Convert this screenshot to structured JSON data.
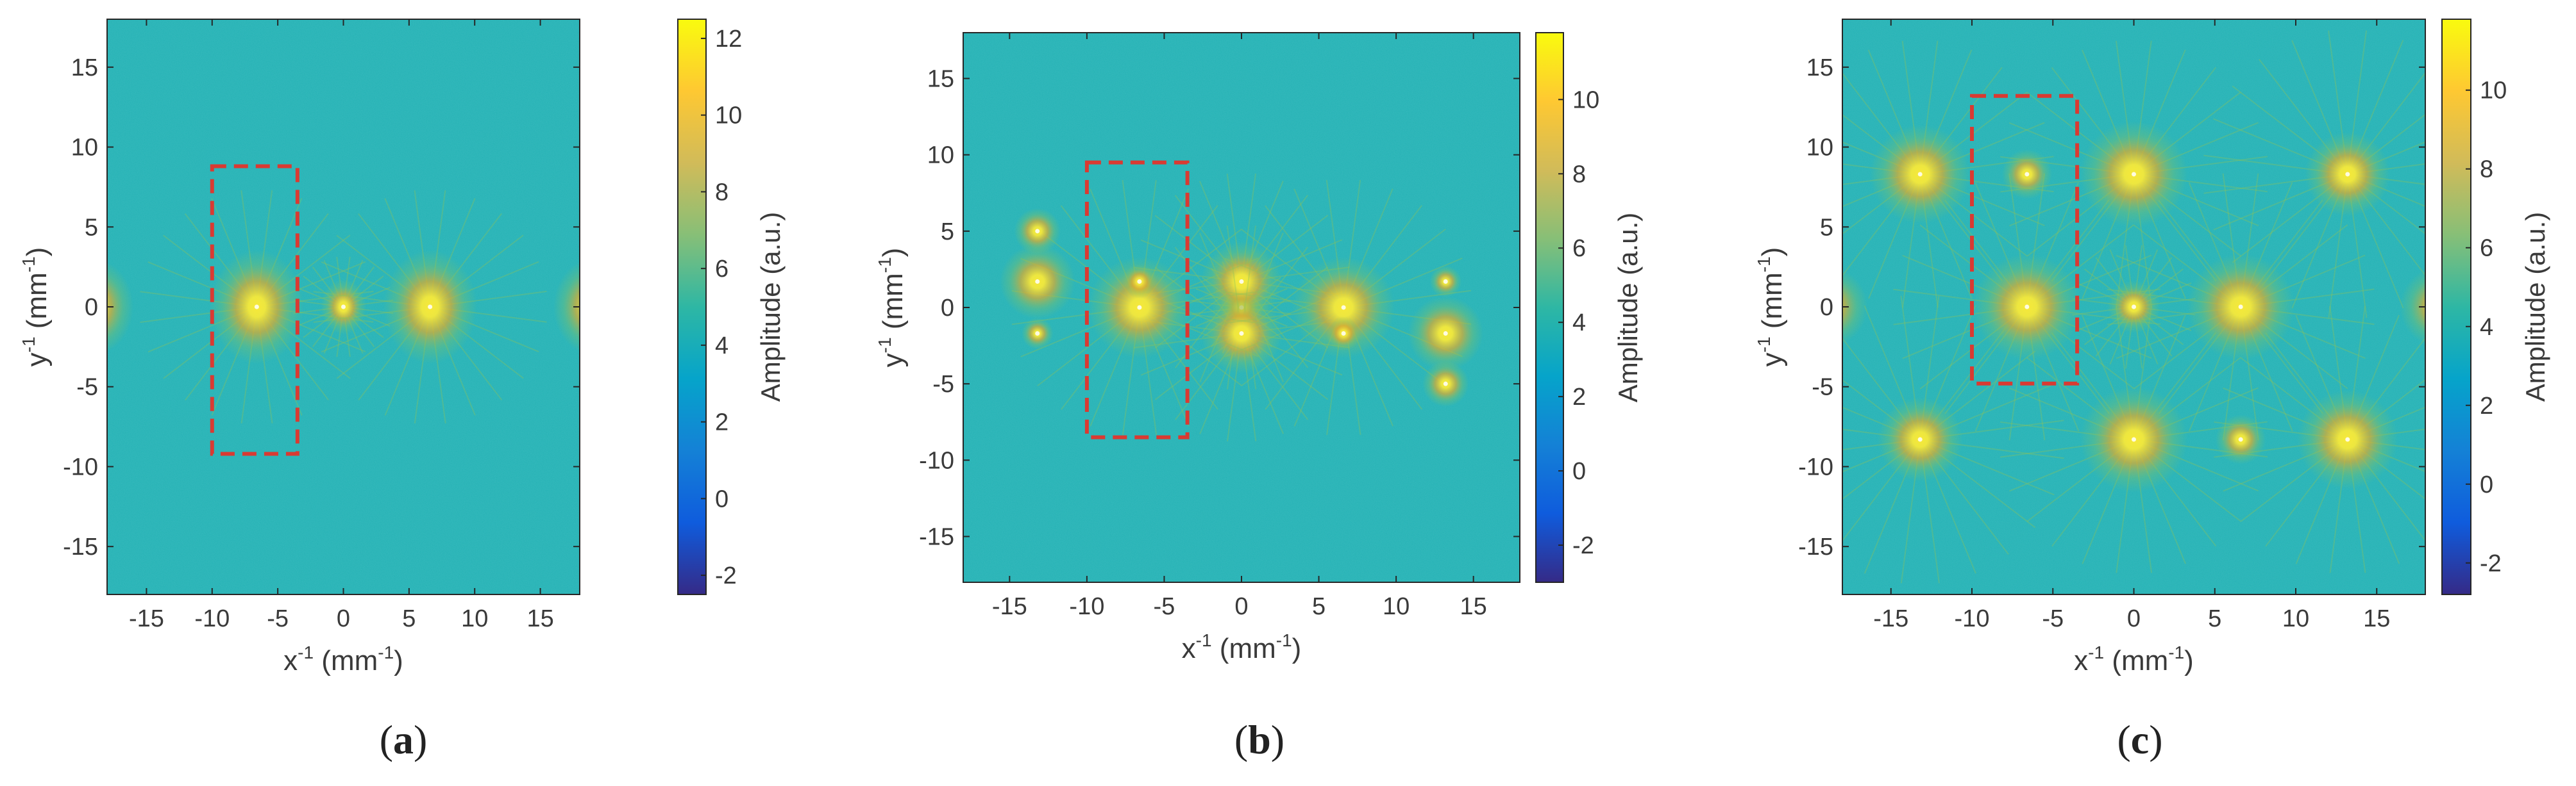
{
  "figure": {
    "panels": [
      {
        "id": "a",
        "caption_open": "(",
        "caption_letter": "a",
        "caption_close": ")"
      },
      {
        "id": "b",
        "caption_open": "(",
        "caption_letter": "b",
        "caption_close": ")"
      },
      {
        "id": "c",
        "caption_open": "(",
        "caption_letter": "c",
        "caption_close": ")"
      }
    ]
  },
  "colors": {
    "background_field": "#23b2b4",
    "peak_core": "#f6e93a",
    "peak_mid": "#e0ad2c",
    "peak_halo": "#8cc45a",
    "roi_box": "#d93a32",
    "parula": [
      "#352a87",
      "#0f5cdd",
      "#1481d6",
      "#06a4ca",
      "#2eb7a4",
      "#87bf77",
      "#d1bb59",
      "#fec832",
      "#f9fb0e"
    ]
  },
  "chart_data": [
    {
      "type": "heatmap",
      "panel": "a",
      "title": "",
      "xlabel": "x",
      "xlabel_sup": "-1",
      "xlabel_unit": "(mm",
      "xlabel_unit_sup": "-1",
      "xlabel_close": ")",
      "ylabel": "y",
      "ylabel_sup": "-1",
      "ylabel_unit": "(mm",
      "ylabel_unit_sup": "-1",
      "ylabel_close": ")",
      "xlim": [
        -18,
        18
      ],
      "ylim": [
        -18,
        18
      ],
      "xticks": [
        -15,
        -10,
        -5,
        0,
        5,
        10,
        15
      ],
      "yticks": [
        15,
        10,
        5,
        0,
        -5,
        -10,
        -15
      ],
      "colorbar": {
        "label": "Amplitude (a.u.)",
        "min": -2.5,
        "max": 12.5,
        "ticks": [
          12,
          10,
          8,
          6,
          4,
          2,
          0,
          -2
        ]
      },
      "peaks": [
        {
          "x": 0,
          "y": 0,
          "amplitude": 11,
          "radius": 1.2,
          "rays": true
        },
        {
          "x": -6.6,
          "y": 0,
          "amplitude": 10,
          "radius": 2.8,
          "rays": true
        },
        {
          "x": 6.6,
          "y": 0,
          "amplitude": 10,
          "radius": 2.8,
          "rays": true
        },
        {
          "x": -19,
          "y": 0,
          "amplitude": 8,
          "radius": 3.2,
          "rays": false
        },
        {
          "x": 19,
          "y": 0,
          "amplitude": 8,
          "radius": 3.2,
          "rays": false
        }
      ],
      "roi": {
        "x1": -10,
        "x2": -3.5,
        "y1": -9.2,
        "y2": 8.8
      }
    },
    {
      "type": "heatmap",
      "panel": "b",
      "title": "",
      "xlabel": "x",
      "xlabel_sup": "-1",
      "xlabel_unit": "(mm",
      "xlabel_unit_sup": "-1",
      "xlabel_close": ")",
      "ylabel": "y",
      "ylabel_sup": "-1",
      "ylabel_unit": "(mm",
      "ylabel_unit_sup": "-1",
      "ylabel_close": ")",
      "xlim": [
        -18,
        18
      ],
      "ylim": [
        -18,
        18
      ],
      "xticks": [
        -15,
        -10,
        -5,
        0,
        5,
        10,
        15
      ],
      "yticks": [
        15,
        10,
        5,
        0,
        -5,
        -10,
        -15
      ],
      "colorbar": {
        "label": "Amplitude (a.u.)",
        "min": -3,
        "max": 11.8,
        "ticks": [
          10,
          8,
          6,
          4,
          2,
          0,
          -2
        ]
      },
      "peaks": [
        {
          "x": 0,
          "y": 0,
          "amplitude": 10.5,
          "radius": 1.0,
          "rays": true
        },
        {
          "x": 0,
          "y": 1.7,
          "amplitude": 9.5,
          "radius": 2.2,
          "rays": true
        },
        {
          "x": 0,
          "y": -1.7,
          "amplitude": 9.5,
          "radius": 2.2,
          "rays": true
        },
        {
          "x": -6.6,
          "y": 0,
          "amplitude": 10,
          "radius": 2.6,
          "rays": true
        },
        {
          "x": -6.6,
          "y": 1.7,
          "amplitude": 8,
          "radius": 1.2,
          "rays": false
        },
        {
          "x": 6.6,
          "y": 0,
          "amplitude": 10,
          "radius": 2.6,
          "rays": true
        },
        {
          "x": 6.6,
          "y": -1.7,
          "amplitude": 8,
          "radius": 1.2,
          "rays": false
        },
        {
          "x": -13.2,
          "y": 1.7,
          "amplitude": 9,
          "radius": 2.2,
          "rays": false
        },
        {
          "x": -13.2,
          "y": 5,
          "amplitude": 8,
          "radius": 1.6,
          "rays": false
        },
        {
          "x": -13.2,
          "y": -1.7,
          "amplitude": 7.5,
          "radius": 1.2,
          "rays": false
        },
        {
          "x": 13.2,
          "y": -1.7,
          "amplitude": 9,
          "radius": 2.2,
          "rays": false
        },
        {
          "x": 13.2,
          "y": -5,
          "amplitude": 8,
          "radius": 1.6,
          "rays": false
        },
        {
          "x": 13.2,
          "y": 1.7,
          "amplitude": 7.5,
          "radius": 1.2,
          "rays": false
        }
      ],
      "roi": {
        "x1": -10,
        "x2": -3.5,
        "y1": -8.5,
        "y2": 9.5
      }
    },
    {
      "type": "heatmap",
      "panel": "c",
      "title": "",
      "xlabel": "x",
      "xlabel_sup": "-1",
      "xlabel_unit": "(mm",
      "xlabel_unit_sup": "-1",
      "xlabel_close": ")",
      "ylabel": "y",
      "ylabel_sup": "-1",
      "ylabel_unit": "(mm",
      "ylabel_unit_sup": "-1",
      "ylabel_close": ")",
      "xlim": [
        -18,
        18
      ],
      "ylim": [
        -18,
        18
      ],
      "xticks": [
        -15,
        -10,
        -5,
        0,
        5,
        10,
        15
      ],
      "yticks": [
        15,
        10,
        5,
        0,
        -5,
        -10,
        -15
      ],
      "colorbar": {
        "label": "Amplitude (a.u.)",
        "min": -2.8,
        "max": 11.8,
        "ticks": [
          10,
          8,
          6,
          4,
          2,
          0,
          -2
        ]
      },
      "peaks": [
        {
          "x": 0,
          "y": 0,
          "amplitude": 10.5,
          "radius": 1.2,
          "rays": true
        },
        {
          "x": -6.6,
          "y": 0,
          "amplitude": 10,
          "radius": 2.6,
          "rays": true
        },
        {
          "x": 6.6,
          "y": 0,
          "amplitude": 10,
          "radius": 2.6,
          "rays": true
        },
        {
          "x": -13.2,
          "y": 8.3,
          "amplitude": 9.5,
          "radius": 2.6,
          "rays": true
        },
        {
          "x": -6.6,
          "y": 8.3,
          "amplitude": 9,
          "radius": 1.4,
          "rays": false
        },
        {
          "x": 0,
          "y": 8.3,
          "amplitude": 10,
          "radius": 2.6,
          "rays": true
        },
        {
          "x": 13.2,
          "y": 8.3,
          "amplitude": 8,
          "radius": 2.8,
          "rays": true
        },
        {
          "x": -13.2,
          "y": -8.3,
          "amplitude": 8,
          "radius": 2.8,
          "rays": true
        },
        {
          "x": 0,
          "y": -8.3,
          "amplitude": 10,
          "radius": 2.6,
          "rays": true
        },
        {
          "x": 6.6,
          "y": -8.3,
          "amplitude": 9,
          "radius": 1.4,
          "rays": false
        },
        {
          "x": 13.2,
          "y": -8.3,
          "amplitude": 9.5,
          "radius": 2.6,
          "rays": true
        },
        {
          "x": -19,
          "y": 0,
          "amplitude": 7.5,
          "radius": 3,
          "rays": false
        },
        {
          "x": 19,
          "y": 0,
          "amplitude": 7.5,
          "radius": 3,
          "rays": false
        }
      ],
      "roi": {
        "x1": -10,
        "x2": -3.5,
        "y1": -4.8,
        "y2": 13.2
      }
    }
  ]
}
